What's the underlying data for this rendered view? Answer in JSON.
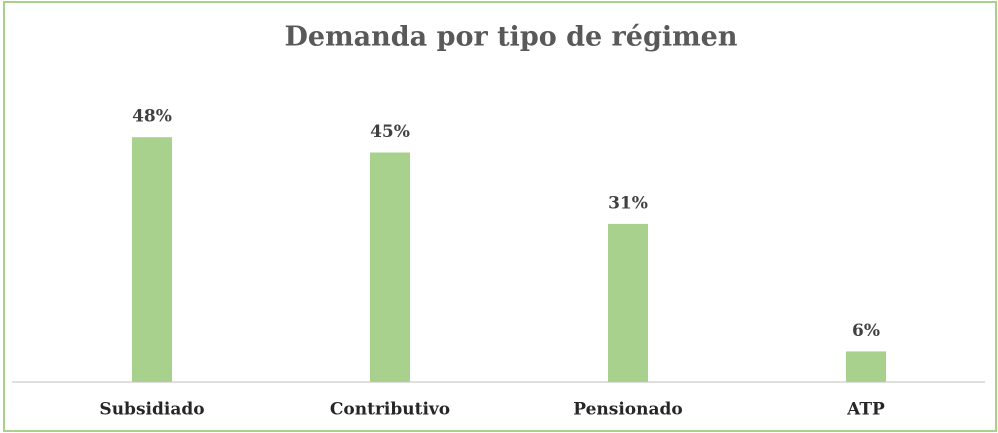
{
  "chart_data": {
    "type": "bar",
    "title": "Demanda por tipo de régimen",
    "categories": [
      "Subsidiado",
      "Contributivo",
      "Pensionado",
      "ATP"
    ],
    "values": [
      48,
      45,
      31,
      6
    ],
    "value_labels": [
      "48%",
      "45%",
      "31%",
      "6%"
    ],
    "color": "#a9d18e"
  }
}
